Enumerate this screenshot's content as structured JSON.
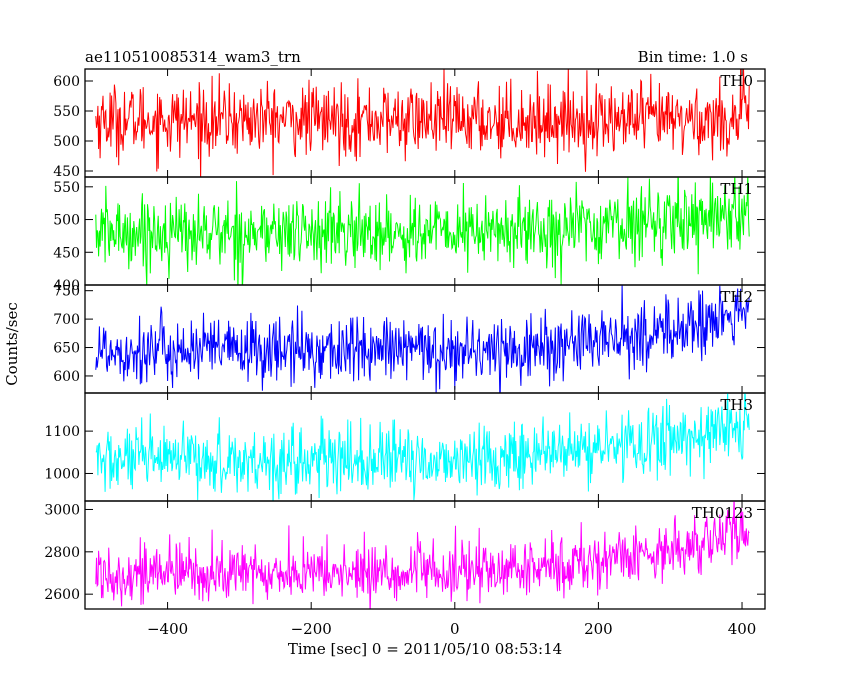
{
  "header": {
    "title": "ae110510085314_wam3_trn",
    "bin_time": "Bin time: 1.0 s"
  },
  "chart_data": {
    "type": "line",
    "xlabel": "Time [sec] 0 = 2011/05/10 08:53:14",
    "ylabel": "Counts/sec",
    "xlim": [
      -515,
      432
    ],
    "x_ticks": [
      -400,
      -200,
      0,
      200,
      400
    ],
    "x_tick_labels": [
      "−400",
      "−200",
      "0",
      "200",
      "400"
    ],
    "x_range": [
      -500,
      410
    ],
    "bin": 1.0,
    "grid": false,
    "panels": [
      {
        "name": "TH0",
        "color": "#ff0000",
        "ylim": [
          440,
          620
        ],
        "yticks": [
          450,
          500,
          550,
          600
        ],
        "ytick_labels": [
          "450",
          "500",
          "550",
          "600"
        ],
        "start_mean": 535,
        "end_mean": 545,
        "noise": 30,
        "rise_from": 0.95
      },
      {
        "name": "TH1",
        "color": "#00ff00",
        "ylim": [
          400,
          565
        ],
        "yticks": [
          400,
          450,
          500,
          550
        ],
        "ytick_labels": [
          "400",
          "450",
          "500",
          "550"
        ],
        "start_mean": 480,
        "end_mean": 515,
        "noise": 28,
        "rise_from": 0.5
      },
      {
        "name": "TH2",
        "color": "#0000ff",
        "ylim": [
          570,
          760
        ],
        "yticks": [
          600,
          650,
          700,
          750
        ],
        "ytick_labels": [
          "600",
          "650",
          "700",
          "750"
        ],
        "start_mean": 645,
        "end_mean": 710,
        "noise": 30,
        "rise_from": 0.55
      },
      {
        "name": "TH3",
        "color": "#00ffff",
        "ylim": [
          935,
          1190
        ],
        "yticks": [
          1000,
          1100
        ],
        "ytick_labels": [
          "1000",
          "1100"
        ],
        "start_mean": 1030,
        "end_mean": 1115,
        "noise": 40,
        "rise_from": 0.45
      },
      {
        "name": "TH0123",
        "color": "#ff00ff",
        "ylim": [
          2530,
          3040
        ],
        "yticks": [
          2600,
          2800,
          3000
        ],
        "ytick_labels": [
          "2600",
          "2800",
          "3000"
        ],
        "start_mean": 2700,
        "end_mean": 2900,
        "noise": 70,
        "rise_from": 0.5
      }
    ]
  }
}
